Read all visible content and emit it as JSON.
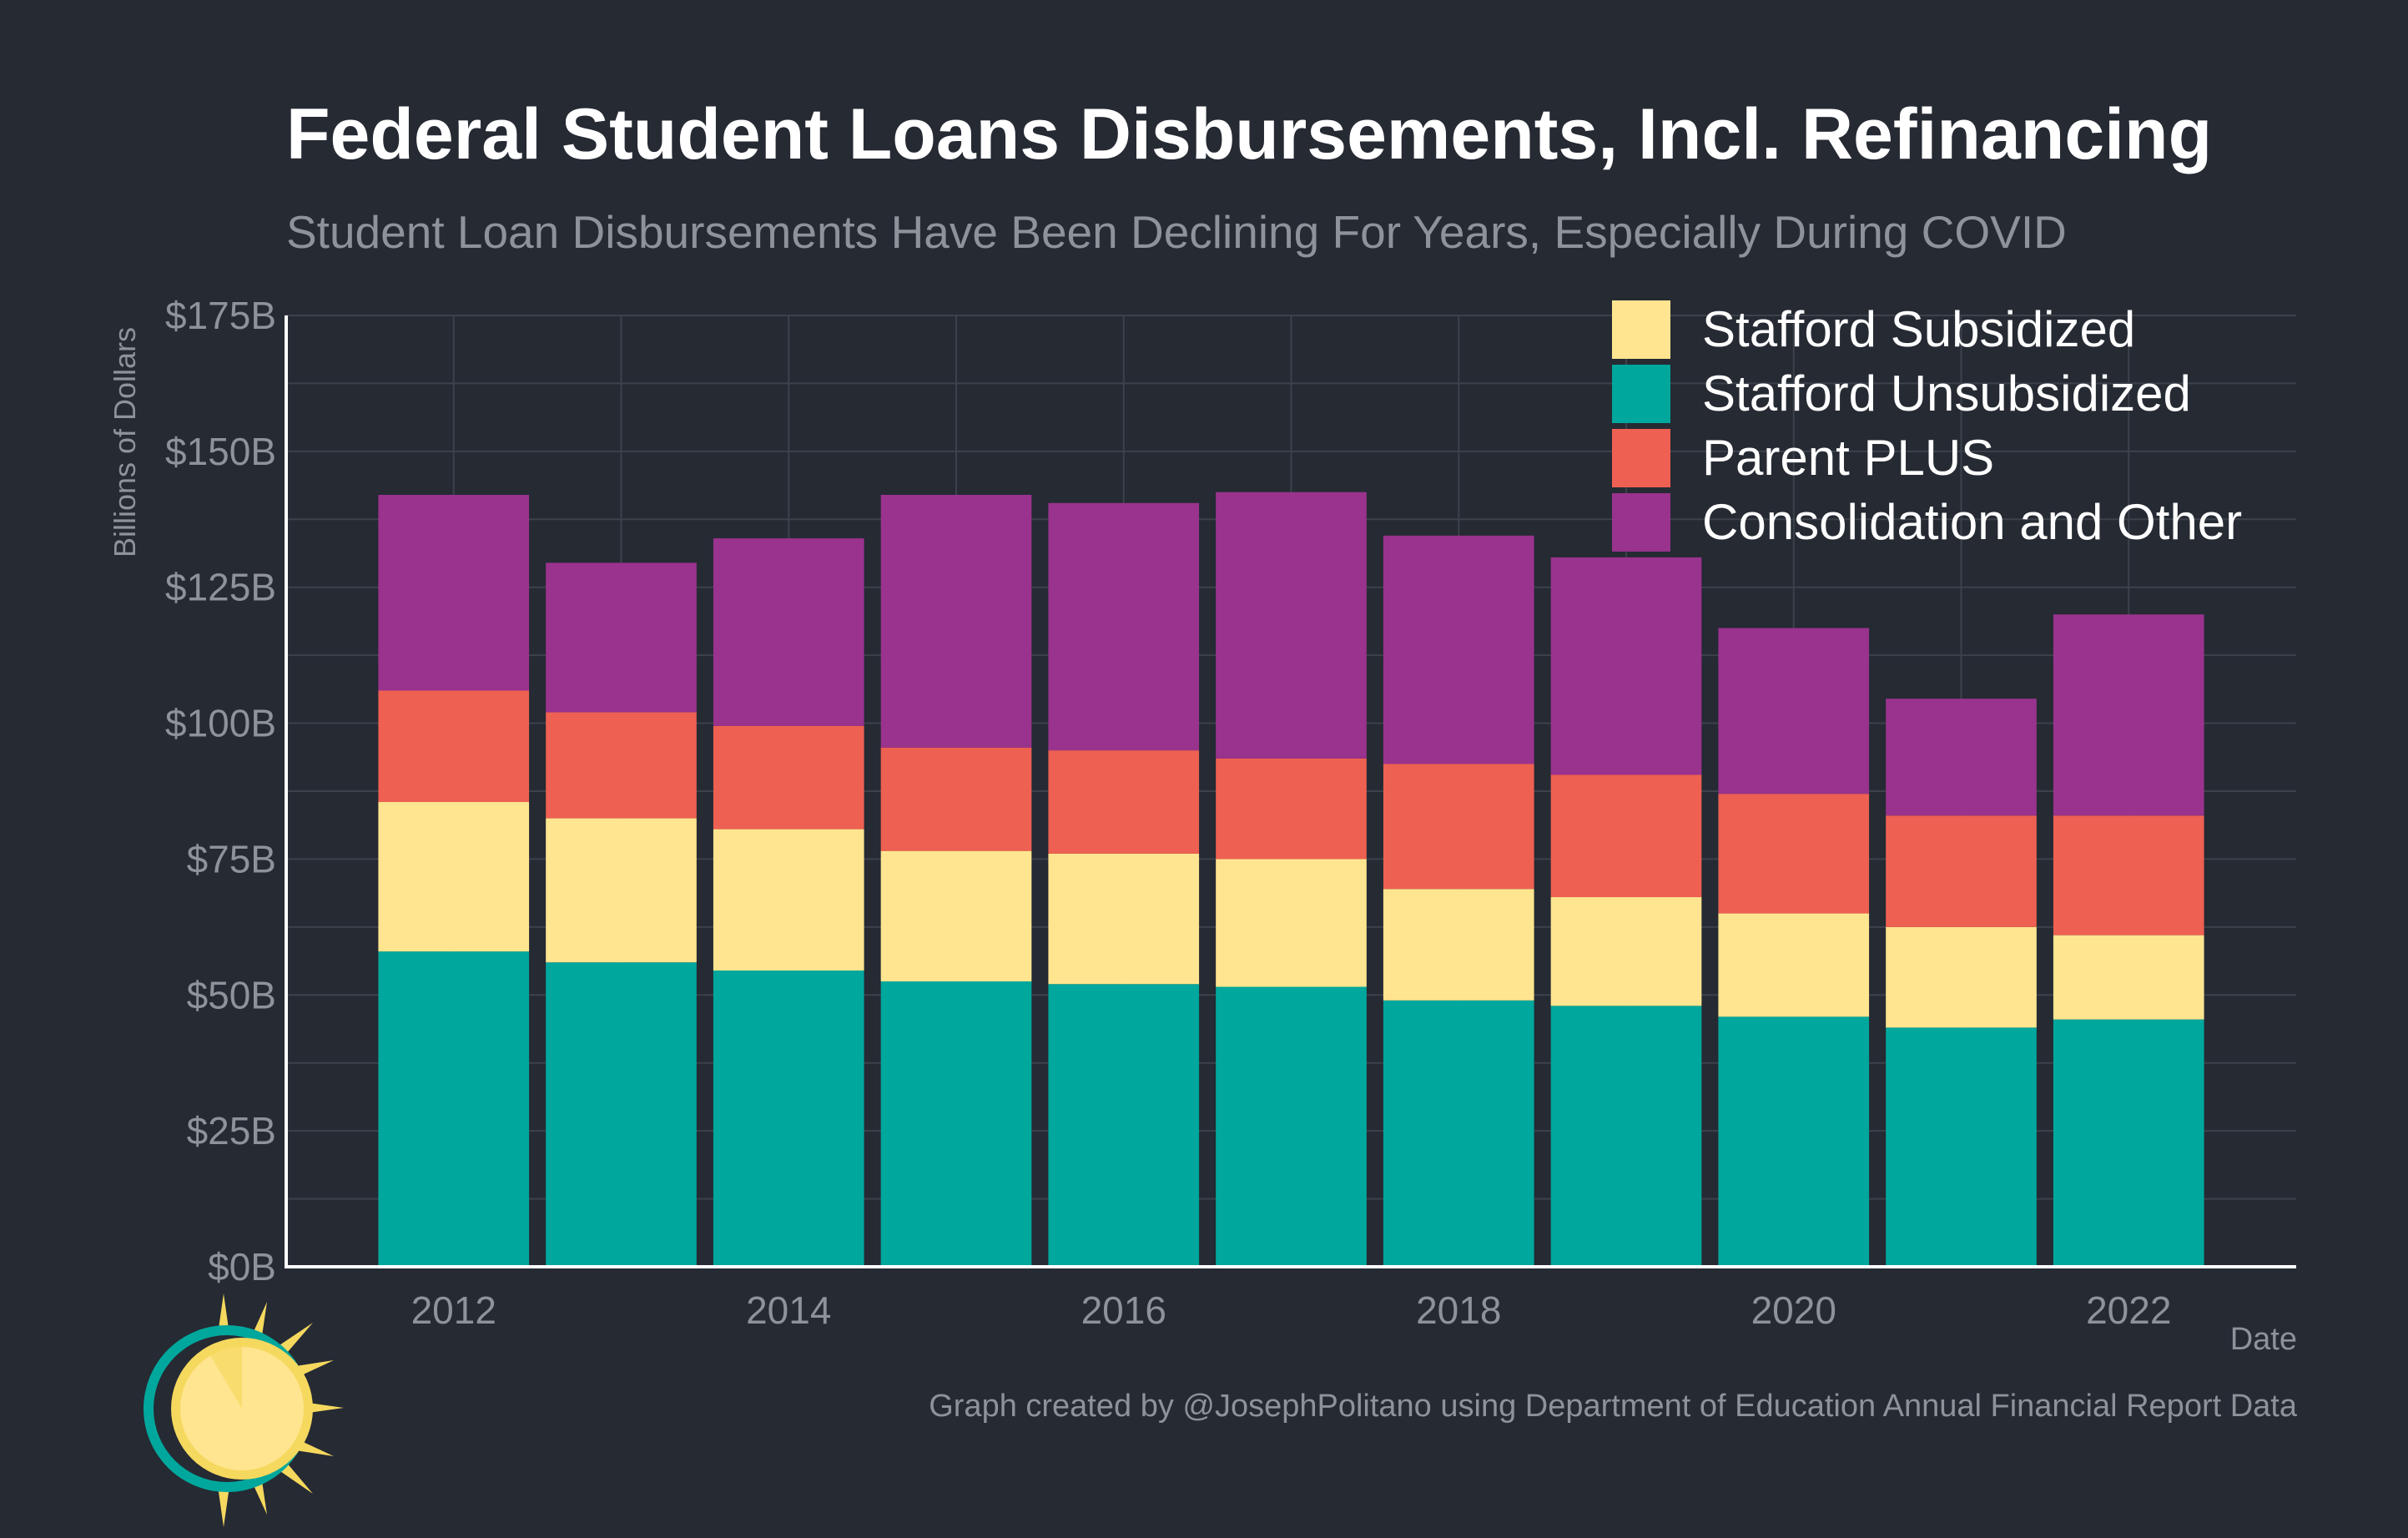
{
  "chart_data": {
    "type": "bar",
    "stacked": true,
    "title": "Federal Student Loans Disbursements, Incl. Refinancing",
    "subtitle": "Student Loan Disbursements Have Been Declining For Years, Especially During COVID",
    "xlabel": "Date",
    "ylabel": "Billions of Dollars",
    "caption": "Graph created by @JosephPolitano using Department of Education Annual Financial Report Data",
    "ylim": [
      0,
      175
    ],
    "yticks": [
      0,
      25,
      50,
      75,
      100,
      125,
      150,
      175
    ],
    "ytick_labels": [
      "$0B",
      "$25B",
      "$50B",
      "$75B",
      "$100B",
      "$125B",
      "$150B",
      "$175B"
    ],
    "xlim": [
      2011,
      2023
    ],
    "categories": [
      2012,
      2013,
      2014,
      2015,
      2016,
      2017,
      2018,
      2019,
      2020,
      2021,
      2022
    ],
    "xtick_labels": [
      "2012",
      "2014",
      "2016",
      "2018",
      "2020",
      "2022"
    ],
    "legend_position": "top-right",
    "grid": true,
    "series": [
      {
        "name": "Stafford Unsubsidized",
        "color": "#00a79c",
        "values": [
          58,
          56,
          54.5,
          52.5,
          52,
          51.5,
          49,
          48,
          46,
          44,
          45.5
        ]
      },
      {
        "name": "Stafford Subsidized",
        "color": "#ffe58f",
        "values": [
          27.5,
          26.5,
          26,
          24,
          24,
          23.5,
          20.5,
          20,
          19,
          18.5,
          15.5
        ]
      },
      {
        "name": "Parent PLUS",
        "color": "#ee6052",
        "values": [
          20.5,
          19.5,
          19,
          19,
          19,
          18.5,
          23,
          22.5,
          22,
          20.5,
          22
        ]
      },
      {
        "name": "Consolidation and Other",
        "color": "#9a338d",
        "values": [
          36,
          27.5,
          34.5,
          46.5,
          45.5,
          49,
          42,
          40,
          30.5,
          21.5,
          37
        ]
      }
    ],
    "legend_order": [
      "Stafford Subsidized",
      "Stafford Unsubsidized",
      "Parent PLUS",
      "Consolidation and Other"
    ]
  }
}
